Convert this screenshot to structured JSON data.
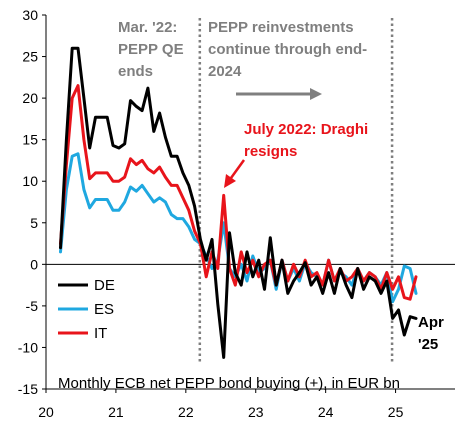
{
  "chart_data": {
    "type": "line",
    "caption": "Monthly ECB net PEPP bond buying (+), in EUR bn",
    "xlim": [
      2020,
      2025.85
    ],
    "ylim": [
      -15,
      30
    ],
    "xticks": [
      20,
      21,
      22,
      23,
      24,
      25
    ],
    "yticks": [
      30,
      25,
      20,
      15,
      10,
      5,
      0,
      -5,
      -10,
      -15
    ],
    "vlines": [
      2022.2,
      2024.95
    ],
    "annotations": {
      "qe_end_line1": "Mar. '22:",
      "qe_end_line2": "PEPP QE",
      "qe_end_line3": "ends",
      "reinvest_line1": "PEPP reinvestments",
      "reinvest_line2": "continue through end-",
      "reinvest_line3": "2024",
      "draghi_line1": "July 2022: Draghi",
      "draghi_line2": "resigns",
      "last_line1": "Apr",
      "last_line2": "'25"
    },
    "colors": {
      "DE": "#000000",
      "ES": "#1fa8e0",
      "IT": "#e8141b",
      "annotation": "#7f7f7f"
    },
    "legend_position": "bottom-left",
    "series": [
      {
        "name": "DE",
        "x": [
          2020.208,
          2020.292,
          2020.375,
          2020.458,
          2020.542,
          2020.625,
          2020.708,
          2020.792,
          2020.875,
          2020.958,
          2021.042,
          2021.125,
          2021.208,
          2021.292,
          2021.375,
          2021.458,
          2021.542,
          2021.625,
          2021.708,
          2021.792,
          2021.875,
          2021.958,
          2022.042,
          2022.125,
          2022.208,
          2022.292,
          2022.375,
          2022.458,
          2022.542,
          2022.625,
          2022.708,
          2022.792,
          2022.875,
          2022.958,
          2023.042,
          2023.125,
          2023.208,
          2023.292,
          2023.375,
          2023.458,
          2023.542,
          2023.625,
          2023.708,
          2023.792,
          2023.875,
          2023.958,
          2024.042,
          2024.125,
          2024.208,
          2024.292,
          2024.375,
          2024.458,
          2024.542,
          2024.625,
          2024.708,
          2024.792,
          2024.875,
          2024.958,
          2025.042,
          2025.125,
          2025.208,
          2025.292
        ],
        "values": [
          2,
          15,
          26,
          26,
          20,
          14,
          17.7,
          17.7,
          17.7,
          14.3,
          14,
          14.5,
          19.7,
          19,
          18.5,
          21.2,
          16,
          18.2,
          15.3,
          13,
          13,
          11,
          9.5,
          7,
          3,
          0.5,
          3,
          -4.8,
          -11.2,
          3.8,
          -1,
          -2.5,
          1.5,
          -1.5,
          0.5,
          -3,
          3.2,
          -2.5,
          0.5,
          -3.5,
          -2,
          -1,
          0.2,
          -2.5,
          -1.5,
          -3.5,
          -1,
          -3.5,
          -0.5,
          -2.5,
          -4,
          -0.5,
          -3,
          -1.5,
          -2,
          -3.5,
          -2,
          -6.5,
          -5.5,
          -8.5,
          -6.3,
          -6.5
        ]
      },
      {
        "name": "ES",
        "x": [
          2020.208,
          2020.292,
          2020.375,
          2020.458,
          2020.542,
          2020.625,
          2020.708,
          2020.792,
          2020.875,
          2020.958,
          2021.042,
          2021.125,
          2021.208,
          2021.292,
          2021.375,
          2021.458,
          2021.542,
          2021.625,
          2021.708,
          2021.792,
          2021.875,
          2021.958,
          2022.042,
          2022.125,
          2022.208,
          2022.292,
          2022.375,
          2022.458,
          2022.542,
          2022.625,
          2022.708,
          2022.792,
          2022.875,
          2022.958,
          2023.042,
          2023.125,
          2023.208,
          2023.292,
          2023.375,
          2023.458,
          2023.542,
          2023.625,
          2023.708,
          2023.792,
          2023.875,
          2023.958,
          2024.042,
          2024.125,
          2024.208,
          2024.292,
          2024.375,
          2024.458,
          2024.542,
          2024.625,
          2024.708,
          2024.792,
          2024.875,
          2024.958,
          2025.042,
          2025.125,
          2025.208,
          2025.292
        ],
        "values": [
          1.5,
          9,
          13,
          13.3,
          9,
          6.8,
          7.8,
          7.8,
          7.8,
          6.5,
          6.5,
          7.5,
          9.3,
          8.8,
          9.5,
          8.5,
          7.5,
          8,
          7.5,
          6,
          5.5,
          5.5,
          4.5,
          3,
          2.5,
          1,
          -0.5,
          0.5,
          5,
          -0.5,
          -1.5,
          0,
          -2,
          1,
          -1,
          -0.5,
          0.5,
          -3,
          0.5,
          -2,
          -0.5,
          -2,
          0.2,
          -1,
          -1.5,
          -2.5,
          0.5,
          -2,
          -1,
          -1.5,
          -2.5,
          -0.5,
          -2,
          -1,
          -1.5,
          -2.5,
          -1,
          -4.5,
          -3,
          -0.2,
          -0.5,
          -3.5
        ]
      },
      {
        "name": "IT",
        "x": [
          2020.208,
          2020.292,
          2020.375,
          2020.458,
          2020.542,
          2020.625,
          2020.708,
          2020.792,
          2020.875,
          2020.958,
          2021.042,
          2021.125,
          2021.208,
          2021.292,
          2021.375,
          2021.458,
          2021.542,
          2021.625,
          2021.708,
          2021.792,
          2021.875,
          2021.958,
          2022.042,
          2022.125,
          2022.208,
          2022.292,
          2022.375,
          2022.458,
          2022.542,
          2022.625,
          2022.708,
          2022.792,
          2022.875,
          2022.958,
          2023.042,
          2023.125,
          2023.208,
          2023.292,
          2023.375,
          2023.458,
          2023.542,
          2023.625,
          2023.708,
          2023.792,
          2023.875,
          2023.958,
          2024.042,
          2024.125,
          2024.208,
          2024.292,
          2024.375,
          2024.458,
          2024.542,
          2024.625,
          2024.708,
          2024.792,
          2024.875,
          2024.958,
          2025.042,
          2025.125,
          2025.208,
          2025.292
        ],
        "values": [
          2.5,
          12,
          20,
          21.5,
          15,
          10.3,
          11,
          11,
          11,
          10,
          10,
          10.5,
          12.7,
          12,
          12.5,
          11.5,
          11,
          11.7,
          10.5,
          9.5,
          9.5,
          8,
          6.5,
          4,
          2.5,
          -1.5,
          1.5,
          -0.5,
          8.3,
          -0.5,
          -2.5,
          1.5,
          -1,
          0.5,
          -1.5,
          0,
          0.5,
          -2.5,
          0.5,
          -2,
          0,
          -1.5,
          0.5,
          -1.5,
          -1,
          -2.5,
          0.5,
          -2,
          -0.5,
          -2,
          -1.5,
          -0.5,
          -2,
          -1,
          -1.5,
          -3,
          -1,
          -3,
          -1.5,
          -4,
          -4.2,
          -1.5
        ]
      }
    ]
  }
}
